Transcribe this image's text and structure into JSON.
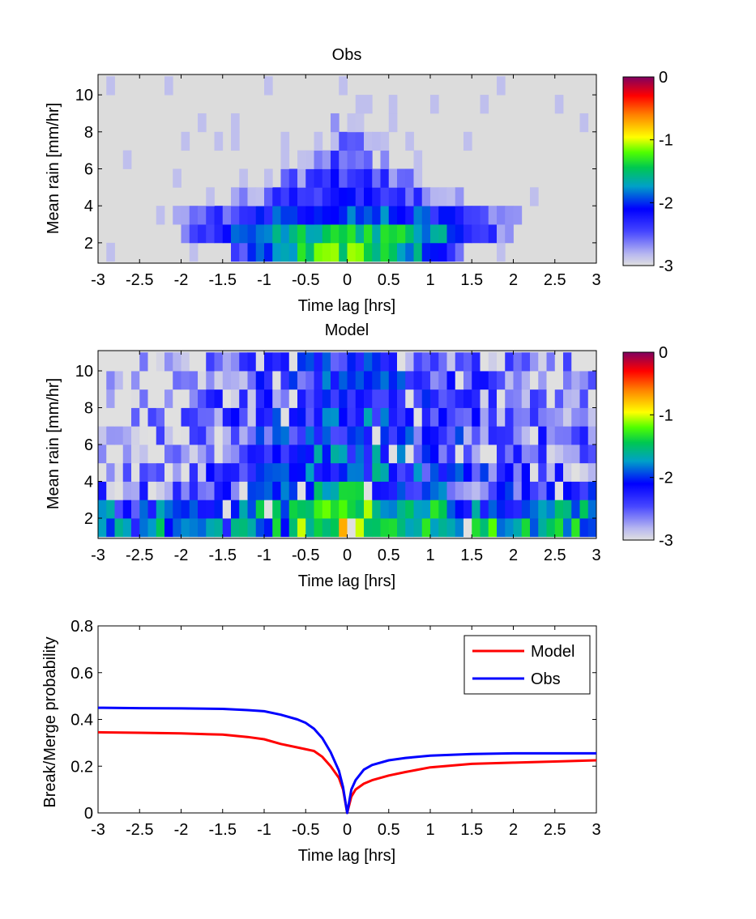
{
  "chart_data": [
    {
      "type": "heatmap",
      "title": "Obs",
      "xlabel": "Time lag [hrs]",
      "ylabel": "Mean rain [mm/hr]",
      "xlim": [
        -3,
        3
      ],
      "ylim": [
        0.9,
        11.1
      ],
      "xticks": [
        -3,
        -2.5,
        -2,
        -1.5,
        -1,
        -0.5,
        0,
        0.5,
        1,
        1.5,
        2,
        2.5,
        3
      ],
      "xtick_labels": [
        "-3",
        "-2.5",
        "-2",
        "-1.5",
        "-1",
        "-0.5",
        "0",
        "0.5",
        "1",
        "1.5",
        "2",
        "2.5",
        "3"
      ],
      "yticks": [
        2,
        4,
        6,
        8,
        10
      ],
      "ytick_labels": [
        "2",
        "4",
        "6",
        "8",
        "10"
      ],
      "rows_y_centers": [
        1.5,
        2.5,
        3.5,
        4.5,
        5.5,
        6.5,
        7.5,
        8.5,
        9.5,
        10.5
      ],
      "profile_center": [
        -1.3,
        -1.4,
        -1.9,
        -2.2,
        -2.3,
        -2.5,
        -2.7,
        -2.8,
        -2.9,
        -3.0
      ],
      "profile_halfwidth_hrs": [
        1.3,
        1.9,
        2.3,
        1.8,
        1.2,
        0.9,
        0.8,
        0.55,
        0.3,
        0.15
      ],
      "colorbar": {
        "min": -3,
        "max": 0,
        "ticks": [
          0,
          -1,
          -2,
          -3
        ],
        "tick_labels": [
          "0",
          "-1",
          "-2",
          "-3"
        ],
        "colormap": "jet-like with light gray at -3"
      },
      "background_color": "#dcdcdc"
    },
    {
      "type": "heatmap",
      "title": "Model",
      "xlabel": "Time lag [hrs]",
      "ylabel": "Mean rain [mm/hr]",
      "xlim": [
        -3,
        3
      ],
      "ylim": [
        0.9,
        11.1
      ],
      "xticks": [
        -3,
        -2.5,
        -2,
        -1.5,
        -1,
        -0.5,
        0,
        0.5,
        1,
        1.5,
        2,
        2.5,
        3
      ],
      "xtick_labels": [
        "-3",
        "-2.5",
        "-2",
        "-1.5",
        "-1",
        "-0.5",
        "0",
        "0.5",
        "1",
        "1.5",
        "2",
        "2.5",
        "3"
      ],
      "yticks": [
        2,
        4,
        6,
        8,
        10
      ],
      "ytick_labels": [
        "2",
        "4",
        "6",
        "8",
        "10"
      ],
      "rows_y_centers": [
        1.5,
        2.5,
        3.5,
        4.5,
        5.5,
        6.5,
        7.5,
        8.5,
        9.5,
        10.5
      ],
      "profile_center": [
        -0.9,
        -1.15,
        -1.7,
        -1.85,
        -1.95,
        -2.0,
        -2.05,
        -2.1,
        -2.15,
        -2.2
      ],
      "profile_halfwidth_hrs": [
        0.9,
        1.5,
        1.6,
        2.2,
        2.5,
        2.8,
        2.8,
        2.8,
        2.8,
        2.8
      ],
      "colorbar": {
        "min": -3,
        "max": 0,
        "ticks": [
          0,
          -1,
          -2,
          -3
        ],
        "tick_labels": [
          "0",
          "-1",
          "-2",
          "-3"
        ],
        "colormap": "jet-like with light gray at -3"
      }
    },
    {
      "type": "line",
      "xlabel": "Time lag [hrs]",
      "ylabel": "Break/Merge probability",
      "xlim": [
        -3,
        3
      ],
      "ylim": [
        0,
        0.8
      ],
      "xticks": [
        -3,
        -2.5,
        -2,
        -1.5,
        -1,
        -0.5,
        0,
        0.5,
        1,
        1.5,
        2,
        2.5,
        3
      ],
      "xtick_labels": [
        "-3",
        "-2.5",
        "-2",
        "-1.5",
        "-1",
        "-0.5",
        "0",
        "0.5",
        "1",
        "1.5",
        "2",
        "2.5",
        "3"
      ],
      "yticks": [
        0,
        0.2,
        0.4,
        0.6,
        0.8
      ],
      "ytick_labels": [
        "0",
        "0.2",
        "0.4",
        "0.6",
        "0.8"
      ],
      "legend_position": "top-right",
      "series": [
        {
          "name": "Model",
          "color": "#ff0000",
          "x": [
            -3,
            -2.5,
            -2,
            -1.5,
            -1.2,
            -1,
            -0.8,
            -0.6,
            -0.4,
            -0.3,
            -0.2,
            -0.1,
            -0.05,
            0,
            0.05,
            0.1,
            0.2,
            0.3,
            0.5,
            0.7,
            1,
            1.5,
            2,
            2.5,
            3
          ],
          "y": [
            0.345,
            0.343,
            0.34,
            0.335,
            0.325,
            0.315,
            0.295,
            0.28,
            0.265,
            0.24,
            0.2,
            0.15,
            0.1,
            0.0,
            0.07,
            0.1,
            0.125,
            0.14,
            0.16,
            0.175,
            0.195,
            0.21,
            0.215,
            0.22,
            0.225
          ]
        },
        {
          "name": "Obs",
          "color": "#0000ff",
          "x": [
            -3,
            -2.5,
            -2,
            -1.5,
            -1.2,
            -1,
            -0.8,
            -0.6,
            -0.5,
            -0.4,
            -0.3,
            -0.2,
            -0.1,
            -0.05,
            0,
            0.05,
            0.1,
            0.2,
            0.3,
            0.5,
            0.7,
            1,
            1.5,
            2,
            2.5,
            3
          ],
          "y": [
            0.45,
            0.448,
            0.447,
            0.445,
            0.44,
            0.435,
            0.42,
            0.4,
            0.385,
            0.36,
            0.32,
            0.26,
            0.18,
            0.11,
            0.0,
            0.1,
            0.14,
            0.185,
            0.205,
            0.225,
            0.235,
            0.245,
            0.252,
            0.255,
            0.255,
            0.255
          ]
        }
      ]
    }
  ]
}
